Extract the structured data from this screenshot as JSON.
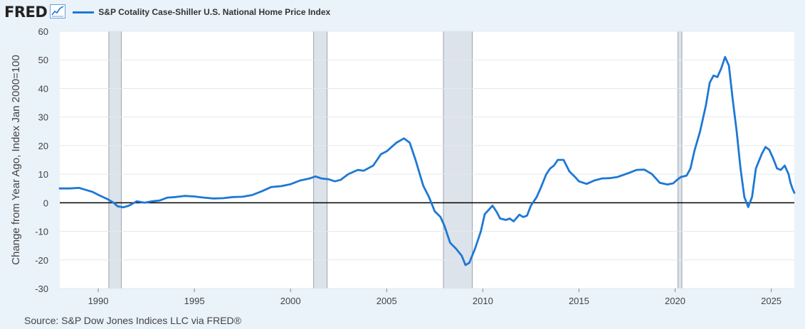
{
  "header": {
    "logo": "FRED",
    "logo_icon": "line-chart-icon"
  },
  "source": "Source: S&P Dow Jones Indices LLC via FRED®",
  "chart_data": {
    "type": "line",
    "ylabel": "Change from Year Ago, Index Jan 2000=100",
    "ylim": [
      -30,
      60
    ],
    "yticks": [
      60,
      50,
      40,
      30,
      20,
      10,
      0,
      -10,
      -20,
      -30
    ],
    "xlim": [
      1988.0,
      2026.2
    ],
    "xticks": [
      1990,
      1995,
      2000,
      2005,
      2010,
      2015,
      2020,
      2025
    ],
    "grid": "horizontal",
    "legend": "top-left",
    "colors": {
      "series": "#1e78d4",
      "recession": "#dde3ea",
      "zero_line": "#000000"
    },
    "recessions": [
      [
        1990.55,
        1991.2
      ],
      [
        2001.2,
        2001.9
      ],
      [
        2007.95,
        2009.45
      ],
      [
        2020.15,
        2020.35
      ]
    ],
    "series": [
      {
        "name": "S&P Cotality Case-Shiller U.S. National Home Price Index",
        "points": [
          [
            1988.0,
            5.0
          ],
          [
            1988.5,
            5.0
          ],
          [
            1989.0,
            5.2
          ],
          [
            1989.3,
            4.6
          ],
          [
            1989.7,
            3.8
          ],
          [
            1990.0,
            2.8
          ],
          [
            1990.5,
            1.2
          ],
          [
            1990.8,
            0.0
          ],
          [
            1991.0,
            -1.2
          ],
          [
            1991.3,
            -1.6
          ],
          [
            1991.6,
            -1.0
          ],
          [
            1992.0,
            0.5
          ],
          [
            1992.4,
            0.0
          ],
          [
            1992.8,
            0.5
          ],
          [
            1993.2,
            0.8
          ],
          [
            1993.6,
            1.8
          ],
          [
            1994.0,
            2.0
          ],
          [
            1994.5,
            2.4
          ],
          [
            1995.0,
            2.2
          ],
          [
            1995.5,
            1.8
          ],
          [
            1996.0,
            1.5
          ],
          [
            1996.5,
            1.6
          ],
          [
            1997.0,
            2.0
          ],
          [
            1997.5,
            2.1
          ],
          [
            1998.0,
            2.7
          ],
          [
            1998.5,
            4.0
          ],
          [
            1999.0,
            5.5
          ],
          [
            1999.5,
            5.8
          ],
          [
            2000.0,
            6.5
          ],
          [
            2000.5,
            7.8
          ],
          [
            2001.0,
            8.5
          ],
          [
            2001.3,
            9.2
          ],
          [
            2001.6,
            8.5
          ],
          [
            2002.0,
            8.2
          ],
          [
            2002.3,
            7.5
          ],
          [
            2002.6,
            8.0
          ],
          [
            2003.0,
            10.0
          ],
          [
            2003.5,
            11.5
          ],
          [
            2003.8,
            11.2
          ],
          [
            2004.3,
            13.0
          ],
          [
            2004.7,
            17.0
          ],
          [
            2005.0,
            18.0
          ],
          [
            2005.5,
            21.0
          ],
          [
            2005.9,
            22.5
          ],
          [
            2006.2,
            21.0
          ],
          [
            2006.5,
            15.0
          ],
          [
            2006.9,
            6.0
          ],
          [
            2007.2,
            2.0
          ],
          [
            2007.5,
            -3.0
          ],
          [
            2007.8,
            -5.0
          ],
          [
            2008.0,
            -8.0
          ],
          [
            2008.3,
            -14.0
          ],
          [
            2008.6,
            -16.0
          ],
          [
            2008.9,
            -18.5
          ],
          [
            2009.1,
            -21.8
          ],
          [
            2009.3,
            -21.0
          ],
          [
            2009.6,
            -16.0
          ],
          [
            2009.9,
            -10.0
          ],
          [
            2010.1,
            -4.0
          ],
          [
            2010.3,
            -2.5
          ],
          [
            2010.5,
            -1.0
          ],
          [
            2010.7,
            -3.0
          ],
          [
            2010.9,
            -5.5
          ],
          [
            2011.2,
            -6.0
          ],
          [
            2011.4,
            -5.5
          ],
          [
            2011.6,
            -6.5
          ],
          [
            2011.9,
            -4.2
          ],
          [
            2012.1,
            -5.0
          ],
          [
            2012.3,
            -4.5
          ],
          [
            2012.5,
            -1.0
          ],
          [
            2012.8,
            2.0
          ],
          [
            2013.0,
            5.0
          ],
          [
            2013.3,
            10.0
          ],
          [
            2013.5,
            12.0
          ],
          [
            2013.7,
            13.0
          ],
          [
            2013.9,
            15.0
          ],
          [
            2014.2,
            15.0
          ],
          [
            2014.5,
            11.0
          ],
          [
            2014.8,
            9.0
          ],
          [
            2015.0,
            7.5
          ],
          [
            2015.4,
            6.6
          ],
          [
            2015.8,
            7.8
          ],
          [
            2016.2,
            8.5
          ],
          [
            2016.6,
            8.6
          ],
          [
            2017.0,
            9.0
          ],
          [
            2017.5,
            10.2
          ],
          [
            2018.0,
            11.5
          ],
          [
            2018.4,
            11.6
          ],
          [
            2018.8,
            10.0
          ],
          [
            2019.2,
            7.0
          ],
          [
            2019.6,
            6.4
          ],
          [
            2019.9,
            6.8
          ],
          [
            2020.1,
            8.0
          ],
          [
            2020.3,
            9.0
          ],
          [
            2020.6,
            9.5
          ],
          [
            2020.8,
            12.0
          ],
          [
            2021.0,
            18.0
          ],
          [
            2021.3,
            25.0
          ],
          [
            2021.6,
            34.0
          ],
          [
            2021.8,
            42.0
          ],
          [
            2022.0,
            44.5
          ],
          [
            2022.2,
            44.0
          ],
          [
            2022.4,
            47.0
          ],
          [
            2022.6,
            51.0
          ],
          [
            2022.8,
            48.0
          ],
          [
            2023.0,
            36.0
          ],
          [
            2023.2,
            25.0
          ],
          [
            2023.4,
            12.0
          ],
          [
            2023.6,
            2.0
          ],
          [
            2023.8,
            -1.5
          ],
          [
            2024.0,
            2.0
          ],
          [
            2024.2,
            12.0
          ],
          [
            2024.5,
            17.0
          ],
          [
            2024.7,
            19.5
          ],
          [
            2024.9,
            18.5
          ],
          [
            2025.1,
            15.5
          ],
          [
            2025.3,
            12.0
          ],
          [
            2025.5,
            11.5
          ],
          [
            2025.7,
            13.0
          ],
          [
            2025.9,
            10.0
          ],
          [
            2026.0,
            7.0
          ],
          [
            2026.1,
            5.0
          ],
          [
            2026.2,
            3.5
          ]
        ]
      }
    ]
  }
}
